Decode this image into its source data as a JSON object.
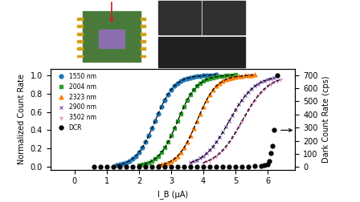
{
  "chart_data": {
    "type": "scatter",
    "x_label": "I_B (μA)",
    "y_label": "Normalized Count Rate",
    "y2_label": "Dark Count Rate (cps)",
    "xlim": [
      -0.75,
      6.85
    ],
    "xticks": [
      0,
      1,
      2,
      3,
      4,
      5,
      6
    ],
    "ylim": [
      -0.03,
      1.07
    ],
    "yticks": [
      0.0,
      0.2,
      0.4,
      0.6,
      0.8,
      1.0
    ],
    "y2lim": [
      -21,
      749
    ],
    "y2ticks": [
      0,
      100,
      200,
      300,
      400,
      500,
      600,
      700
    ],
    "legend": "upper left",
    "grid": false,
    "series": [
      {
        "name": "1550 nm",
        "color": "#1f77b4",
        "marker": "o",
        "line_style": "dashed",
        "x": [
          1.3,
          1.4,
          1.5,
          1.6,
          1.7,
          1.8,
          1.9,
          2.0,
          2.1,
          2.2,
          2.3,
          2.4,
          2.5,
          2.6,
          2.7,
          2.8,
          2.9,
          3.0,
          3.1,
          3.2,
          3.3,
          3.4,
          3.5,
          3.6,
          3.7,
          3.8,
          3.9,
          4.0,
          4.1,
          4.2,
          4.3,
          4.4
        ],
        "values": [
          0.018,
          0.025,
          0.034,
          0.047,
          0.065,
          0.089,
          0.119,
          0.159,
          0.209,
          0.269,
          0.339,
          0.418,
          0.5,
          0.582,
          0.661,
          0.731,
          0.791,
          0.841,
          0.881,
          0.911,
          0.935,
          0.953,
          0.966,
          0.975,
          0.982,
          0.986,
          0.99,
          0.994,
          0.997,
          1.0,
          1.0,
          1.01
        ]
      },
      {
        "name": "2004 nm",
        "color": "#2ca02c",
        "marker": "s",
        "line_style": "dashed",
        "x": [
          2.0,
          2.1,
          2.2,
          2.3,
          2.4,
          2.5,
          2.6,
          2.7,
          2.8,
          2.9,
          3.0,
          3.1,
          3.2,
          3.3,
          3.4,
          3.5,
          3.6,
          3.7,
          3.8,
          3.9,
          4.0,
          4.1,
          4.2,
          4.3,
          4.4,
          4.5,
          4.6,
          4.7,
          4.8,
          4.9,
          5.0
        ],
        "values": [
          0.018,
          0.025,
          0.034,
          0.047,
          0.065,
          0.089,
          0.119,
          0.159,
          0.209,
          0.269,
          0.339,
          0.418,
          0.5,
          0.582,
          0.661,
          0.731,
          0.791,
          0.841,
          0.881,
          0.911,
          0.935,
          0.953,
          0.966,
          0.975,
          0.982,
          0.986,
          0.99,
          0.994,
          0.998,
          1.0,
          1.01
        ]
      },
      {
        "name": "2323 nm",
        "color": "#ff7f0e",
        "marker": "^",
        "line_style": "dashed",
        "x": [
          2.6,
          2.7,
          2.8,
          2.9,
          3.0,
          3.1,
          3.2,
          3.3,
          3.4,
          3.5,
          3.6,
          3.7,
          3.8,
          3.9,
          4.0,
          4.1,
          4.2,
          4.3,
          4.4,
          4.5,
          4.6,
          4.7,
          4.8,
          4.9,
          5.0,
          5.1,
          5.2,
          5.3,
          5.4,
          5.5,
          5.6
        ],
        "values": [
          0.018,
          0.025,
          0.034,
          0.047,
          0.065,
          0.089,
          0.119,
          0.159,
          0.209,
          0.269,
          0.339,
          0.418,
          0.5,
          0.582,
          0.661,
          0.731,
          0.791,
          0.841,
          0.881,
          0.911,
          0.935,
          0.953,
          0.966,
          0.975,
          0.982,
          0.986,
          0.99,
          0.994,
          0.998,
          1.0,
          1.01
        ]
      },
      {
        "name": "2900 nm",
        "color": "#9467bd",
        "marker": "x",
        "line_style": "dashed",
        "x": [
          3.6,
          3.7,
          3.8,
          3.9,
          4.0,
          4.1,
          4.2,
          4.3,
          4.4,
          4.5,
          4.6,
          4.7,
          4.8,
          4.9,
          5.0,
          5.1,
          5.2,
          5.3,
          5.4,
          5.5,
          5.6,
          5.7,
          5.8,
          5.9,
          6.0,
          6.1,
          6.2
        ],
        "values": [
          0.047,
          0.06,
          0.076,
          0.095,
          0.119,
          0.148,
          0.182,
          0.223,
          0.269,
          0.321,
          0.378,
          0.438,
          0.5,
          0.562,
          0.622,
          0.679,
          0.731,
          0.777,
          0.818,
          0.852,
          0.881,
          0.905,
          0.924,
          0.94,
          0.953,
          0.962,
          0.97
        ]
      },
      {
        "name": "3502 nm",
        "color": "#e377c2",
        "marker": "1",
        "line_style": "dashed",
        "x": [
          4.0,
          4.1,
          4.2,
          4.3,
          4.4,
          4.5,
          4.6,
          4.7,
          4.8,
          4.9,
          5.0,
          5.1,
          5.2,
          5.3,
          5.4,
          5.5,
          5.6,
          5.7,
          5.8,
          5.9,
          6.0,
          6.1,
          6.2,
          6.3,
          6.4
        ],
        "values": [
          0.047,
          0.06,
          0.076,
          0.095,
          0.119,
          0.148,
          0.182,
          0.223,
          0.269,
          0.321,
          0.378,
          0.438,
          0.5,
          0.562,
          0.622,
          0.679,
          0.731,
          0.777,
          0.818,
          0.852,
          0.881,
          0.905,
          0.924,
          0.94,
          0.953
        ]
      },
      {
        "name": "DCR",
        "color": "#000000",
        "marker": "o",
        "axis": "y2",
        "x": [
          0.6,
          0.8,
          1.0,
          1.2,
          1.4,
          1.6,
          1.8,
          2.0,
          2.2,
          2.4,
          2.6,
          2.8,
          3.0,
          3.2,
          3.4,
          3.6,
          3.8,
          4.0,
          4.2,
          4.4,
          4.6,
          4.8,
          5.0,
          5.2,
          5.4,
          5.6,
          5.8,
          5.9,
          6.0,
          6.05,
          6.1,
          6.15,
          6.2,
          6.3
        ],
        "values": [
          0,
          0,
          0,
          0,
          0,
          0,
          0,
          0,
          0,
          0,
          0,
          0,
          0,
          0,
          0,
          0,
          0,
          0,
          0,
          0,
          1,
          1,
          2,
          3,
          4,
          6,
          8,
          12,
          20,
          45,
          105,
          160,
          280,
          700
        ]
      }
    ]
  }
}
